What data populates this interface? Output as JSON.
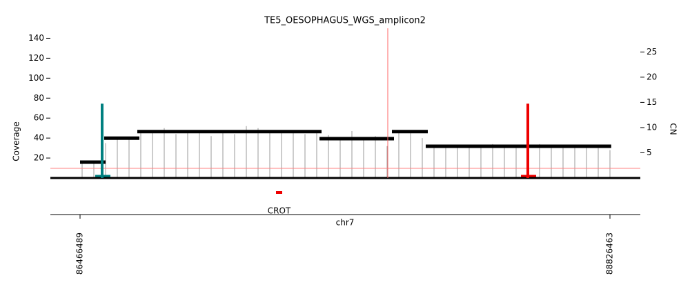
{
  "chart_data": {
    "type": "amplicon",
    "title": "TE5_OESOPHAGUS_WGS_amplicon2",
    "ylabel": "Coverage",
    "y2label": "CN",
    "xlabel": "chr7",
    "xlim": [
      86334354,
      88961671
    ],
    "xticks": [
      86466489,
      88826463
    ],
    "ylim": [
      0,
      150
    ],
    "yticks": [
      20,
      40,
      60,
      80,
      100,
      120,
      140
    ],
    "y2lim": [
      0,
      29.7
    ],
    "y2ticks": [
      5,
      10,
      15,
      20,
      25
    ],
    "coverage": {
      "color": "#999999",
      "x": [
        86475708,
        86527947,
        86580186,
        86632425,
        86684664,
        86736903,
        86789142,
        86841381,
        86893620,
        86945859,
        86998098,
        87050337,
        87102576,
        87154815,
        87207054,
        87259293,
        87311532,
        87363771,
        87416010,
        87468249,
        87520488,
        87572727,
        87624966,
        87677205,
        87729444,
        87781683,
        87833922,
        87886161,
        87938400,
        87990639,
        88042878,
        88095117,
        88147356,
        88199595,
        88251834,
        88304073,
        88356312,
        88408551,
        88460790,
        88513029,
        88565268,
        88617507,
        88669746,
        88721985,
        88774224,
        88826463
      ],
      "values": [
        15,
        15,
        35,
        40,
        40,
        46,
        45,
        50,
        44,
        46,
        48,
        42,
        45,
        44,
        52,
        50,
        45,
        47,
        46,
        44,
        47,
        43,
        40,
        47,
        38,
        42,
        32,
        48,
        46,
        40,
        33,
        31,
        32,
        33,
        31,
        34,
        32,
        30,
        32,
        34,
        33,
        30,
        32,
        33,
        30,
        28
      ]
    },
    "segments": {
      "color": "#000000",
      "axis": "y2",
      "start": [
        86466489,
        86574041,
        86721540,
        87532785,
        87855440,
        88006012
      ],
      "end": [
        86580186,
        86730758,
        87542004,
        87864659,
        88015231,
        88832000
      ],
      "values": [
        3.15,
        7.9,
        9.2,
        7.8,
        9.2,
        6.3
      ]
    },
    "breakpoints": [
      {
        "x": 86564822,
        "value": 74.5,
        "color": "#008080",
        "linewidth": 4
      },
      {
        "x": 87837002,
        "value": 150,
        "color": "#ff6666",
        "linewidth": 1
      },
      {
        "x": 88460801,
        "value": 74.5,
        "color": "#ee0000",
        "linewidth": 4
      }
    ],
    "hline": {
      "value": 9.7,
      "color": "#ff8080"
    },
    "genes": [
      {
        "name": "CROT",
        "start": 87339193,
        "end": 87366849,
        "color": "#ee0000"
      }
    ]
  }
}
